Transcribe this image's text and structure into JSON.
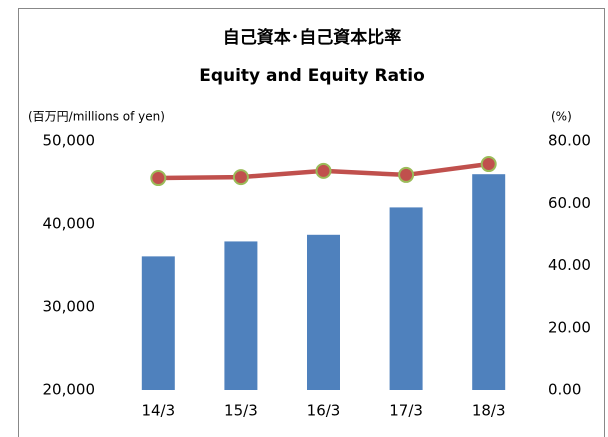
{
  "chart_data": {
    "type": "bar_line",
    "title": "自己資本･自己資本比率",
    "subtitle": "Equity and Equity Ratio",
    "y_label": "(百万円/millions of yen)",
    "y2_label": "(%)",
    "categories": [
      "14/3",
      "15/3",
      "16/3",
      "17/3",
      "18/3"
    ],
    "series": [
      {
        "name": "Equity",
        "type": "bar",
        "color": "#4f81bd",
        "values": [
          36100,
          37900,
          38700,
          42000,
          46000
        ]
      },
      {
        "name": "Equity Ratio",
        "type": "line",
        "axis": "y2",
        "color": "#c0504d",
        "marker_edge": "#9bbb59",
        "values": [
          68.1,
          68.4,
          70.4,
          69.1,
          72.6
        ]
      }
    ],
    "ylim": [
      20000,
      50000
    ],
    "yticks": [
      {
        "value": 20000,
        "label": "20,000"
      },
      {
        "value": 30000,
        "label": "30,000"
      },
      {
        "value": 40000,
        "label": "40,000"
      },
      {
        "value": 50000,
        "label": "50,000"
      }
    ],
    "y2lim": [
      0,
      80
    ],
    "y2ticks": [
      {
        "value": 0,
        "label": "0.00"
      },
      {
        "value": 20,
        "label": "20.00"
      },
      {
        "value": 40,
        "label": "40.00"
      },
      {
        "value": 60,
        "label": "60.00"
      },
      {
        "value": 80,
        "label": "80.00"
      }
    ],
    "grid": false
  }
}
